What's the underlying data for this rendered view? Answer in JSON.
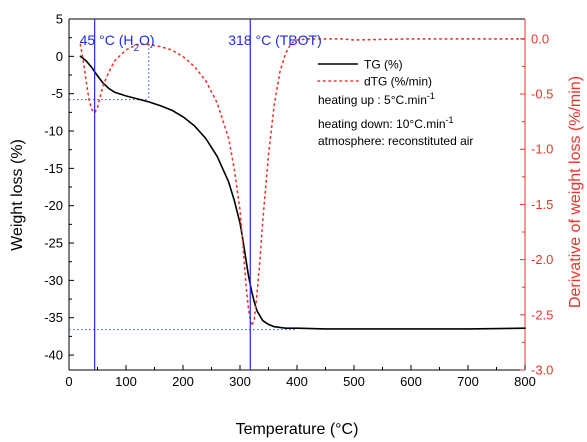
{
  "chart_data": {
    "type": "line",
    "xlabel": "Temperature (°C)",
    "ylabel_left": "Weight loss (%)",
    "ylabel_right": "Derivative of weight loss (%/min)",
    "xlim": [
      0,
      800
    ],
    "ylim_left": [
      -42,
      5
    ],
    "ylim_right": [
      -3.0,
      0.18
    ],
    "x_ticks": [
      0,
      100,
      200,
      300,
      400,
      500,
      600,
      700,
      800
    ],
    "y_left_ticks": [
      5,
      0,
      -5,
      -10,
      -15,
      -20,
      -25,
      -30,
      -35,
      -40
    ],
    "y_right_ticks": [
      0.0,
      -0.5,
      -1.0,
      -1.5,
      -2.0,
      -2.5,
      -3.0
    ],
    "x_tick_labels": [
      "0",
      "100",
      "200",
      "300",
      "400",
      "500",
      "600",
      "700",
      "800"
    ],
    "y_left_tick_labels": [
      "5",
      "0",
      "-5",
      "-10",
      "-15",
      "-20",
      "-25",
      "-30",
      "-35",
      "-40"
    ],
    "y_right_tick_labels": [
      "0.0",
      "-0.5",
      "-1.0",
      "-1.5",
      "-2.0",
      "-2.5",
      "-3.0"
    ],
    "grid": false,
    "legend_position": "top-right",
    "colors": {
      "tg": "#000000",
      "dtg": "#e8362b",
      "annotation": "#1f2de0",
      "right_axis": "#e8362b",
      "guide": "#3a4be8"
    },
    "series": [
      {
        "name": "TG (%)",
        "axis": "left",
        "style": "solid",
        "x": [
          20,
          30,
          40,
          50,
          60,
          70,
          80,
          100,
          120,
          140,
          160,
          180,
          200,
          220,
          240,
          260,
          280,
          290,
          300,
          305,
          310,
          315,
          320,
          325,
          330,
          340,
          350,
          360,
          370,
          380,
          400,
          450,
          500,
          600,
          700,
          800
        ],
        "y": [
          0,
          -0.6,
          -1.5,
          -2.6,
          -3.6,
          -4.3,
          -4.8,
          -5.3,
          -5.7,
          -6.1,
          -6.6,
          -7.2,
          -8.1,
          -9.3,
          -11.0,
          -13.4,
          -16.8,
          -19.3,
          -22.3,
          -24.5,
          -27.0,
          -29.4,
          -31.3,
          -32.9,
          -34.1,
          -35.4,
          -35.9,
          -36.2,
          -36.3,
          -36.4,
          -36.4,
          -36.5,
          -36.5,
          -36.5,
          -36.5,
          -36.4
        ]
      },
      {
        "name": "dTG (%/min)",
        "axis": "right",
        "style": "dotted",
        "x": [
          20,
          25,
          30,
          35,
          40,
          45,
          50,
          55,
          60,
          70,
          80,
          100,
          120,
          140,
          160,
          180,
          200,
          220,
          240,
          260,
          280,
          290,
          300,
          305,
          310,
          315,
          320,
          325,
          330,
          335,
          340,
          350,
          360,
          370,
          380,
          390,
          400,
          420,
          440,
          460,
          480,
          500,
          600,
          700,
          800
        ],
        "y": [
          -0.05,
          -0.2,
          -0.38,
          -0.55,
          -0.64,
          -0.67,
          -0.62,
          -0.52,
          -0.42,
          -0.3,
          -0.2,
          -0.1,
          -0.05,
          -0.05,
          -0.07,
          -0.1,
          -0.16,
          -0.25,
          -0.38,
          -0.58,
          -0.9,
          -1.18,
          -1.55,
          -1.85,
          -2.2,
          -2.45,
          -2.6,
          -2.55,
          -2.3,
          -2.0,
          -1.65,
          -1.05,
          -0.6,
          -0.3,
          -0.13,
          -0.04,
          -0.01,
          0.0,
          0.0,
          0.0,
          0.0,
          -0.01,
          0.0,
          0.0,
          0.0
        ]
      }
    ],
    "annotations": [
      {
        "label": "45 °C (H",
        "sub": "2",
        "tail": "O)",
        "x": 45
      },
      {
        "label": "318 °C (TBOT)",
        "x": 318
      }
    ],
    "guides": {
      "h_left": [
        -5.8,
        -36.6
      ],
      "v_x": [
        140
      ]
    },
    "notes": [
      {
        "text": "heating up : 5°C.min",
        "sup": "-1"
      },
      {
        "text": "heating down: 10°C.min",
        "sup": "-1"
      },
      {
        "text": "atmosphere: reconstituted air",
        "sup": ""
      }
    ]
  }
}
